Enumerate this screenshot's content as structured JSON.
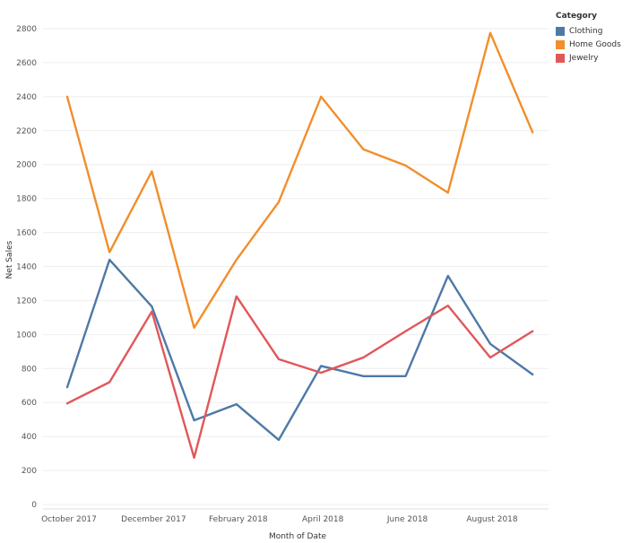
{
  "chart_data": {
    "type": "line",
    "xlabel": "Month of Date",
    "ylabel": "Net Sales",
    "x": [
      "2017-10",
      "2017-11",
      "2017-12",
      "2018-01",
      "2018-02",
      "2018-03",
      "2018-04",
      "2018-05",
      "2018-06",
      "2018-07",
      "2018-08",
      "2018-09"
    ],
    "x_tick_labels": [
      "October 2017",
      "December 2017",
      "February 2018",
      "April 2018",
      "June 2018",
      "August 2018"
    ],
    "x_tick_index": [
      0,
      2,
      4,
      6,
      8,
      10
    ],
    "ylim": [
      0,
      2800
    ],
    "y_ticks": [
      0,
      200,
      400,
      600,
      800,
      1000,
      1200,
      1400,
      1600,
      1800,
      2000,
      2200,
      2400,
      2600,
      2800
    ],
    "grid": true,
    "legend_placement": "top-right",
    "legend_title": "Category",
    "series": [
      {
        "name": "Clothing",
        "color": "#4e79a7",
        "values": [
          690,
          1440,
          1165,
          495,
          590,
          380,
          815,
          755,
          755,
          1345,
          945,
          765
        ]
      },
      {
        "name": "Home Goods",
        "color": "#f28e2b",
        "values": [
          2400,
          1485,
          1960,
          1040,
          1440,
          1780,
          2400,
          2090,
          1995,
          1835,
          2775,
          2190
        ]
      },
      {
        "name": "Jewelry",
        "color": "#e15759",
        "values": [
          595,
          720,
          1135,
          275,
          1225,
          855,
          775,
          865,
          1020,
          1170,
          865,
          1020
        ]
      }
    ]
  }
}
